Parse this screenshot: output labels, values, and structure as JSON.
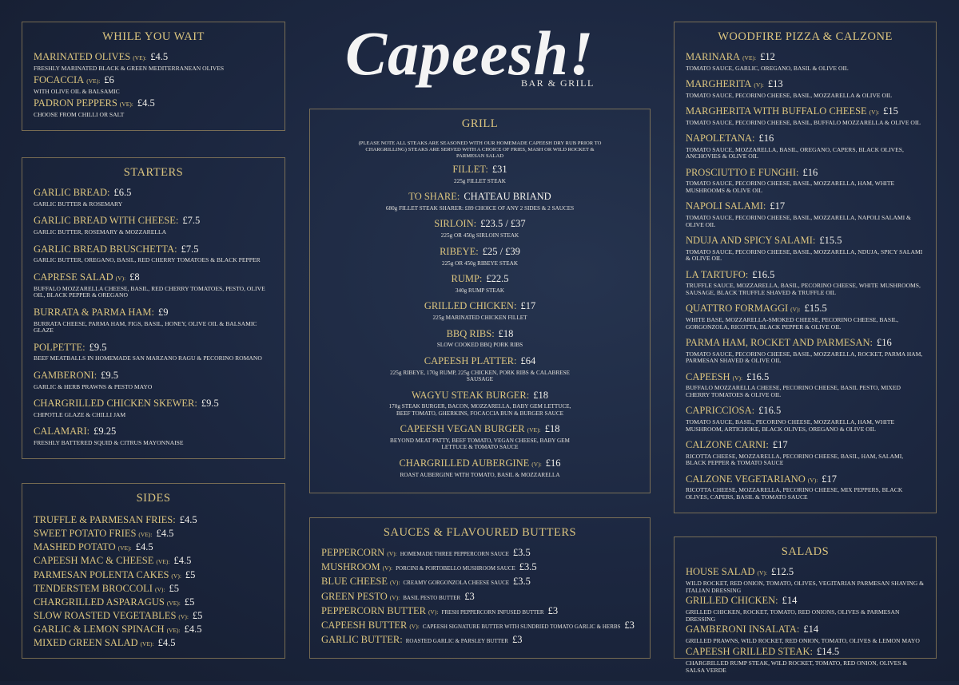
{
  "logo": {
    "name": "Capeesh!",
    "tagline": "BAR & GRILL"
  },
  "sections": [
    {
      "title": "WHILE YOU WAIT",
      "items": [
        {
          "name": "MARINATED OLIVES",
          "tag": "(VE):",
          "price": "£4.5",
          "desc": "FRESHLY MARINATED BLACK & GREEN MEDITERRANEAN OLIVES"
        },
        {
          "name": "FOCACCIA",
          "tag": "(VE):",
          "price": "£6",
          "desc": "WITH OLIVE OIL & BALSAMIC"
        },
        {
          "name": "PADRON PEPPERS",
          "tag": "(VE):",
          "price": "£4.5",
          "desc": "CHOOSE FROM CHILLI OR SALT"
        }
      ]
    },
    {
      "title": "STARTERS",
      "items": [
        {
          "name": "GARLIC BREAD:",
          "price": "£6.5",
          "desc": "GARLIC BUTTER & ROSEMARY"
        },
        {
          "name": "GARLIC BREAD WITH CHEESE:",
          "price": "£7.5",
          "desc": "GARLIC BUTTER, ROSEMARY & MOZZARELLA"
        },
        {
          "name": "GARLIC BREAD BRUSCHETTA:",
          "price": "£7.5",
          "desc": "GARLIC BUTTER, OREGANO, BASIL, RED CHERRY TOMATOES & BLACK PEPPER"
        },
        {
          "name": "CAPRESE SALAD",
          "tag": "(V):",
          "price": "£8",
          "desc": "BUFFALO MOZZARELLA CHEESE, BASIL, RED CHERRY TOMATOES, PESTO, OLIVE OIL, BLACK PEPPER & OREGANO"
        },
        {
          "name": "BURRATA & PARMA HAM:",
          "price": "£9",
          "desc": "BURRATA CHEESE, PARMA HAM, FIGS, BASIL, HONEY, OLIVE OIL & BALSAMIC GLAZE"
        },
        {
          "name": "POLPETTE:",
          "price": "£9.5",
          "desc": "BEEF MEATBALLS IN HOMEMADE SAN MARZANO RAGU & PECORINO ROMANO"
        },
        {
          "name": "GAMBERONI:",
          "price": "£9.5",
          "desc": "GARLIC & HERB PRAWNS & PESTO MAYO"
        },
        {
          "name": "CHARGRILLED CHICKEN SKEWER:",
          "price": "£9.5",
          "desc": "CHIPOTLE GLAZE & CHILLI JAM"
        },
        {
          "name": "CALAMARI:",
          "price": "£9.25",
          "desc": "FRESHLY BATTERED SQUID & CITRUS MAYONNAISE"
        }
      ]
    },
    {
      "title": "SIDES",
      "items": [
        {
          "name": "TRUFFLE & PARMESAN FRIES:",
          "price": "£4.5"
        },
        {
          "name": "SWEET POTATO FRIES",
          "tag": "(VE):",
          "price": "£4.5"
        },
        {
          "name": "MASHED POTATO",
          "tag": "(VE):",
          "price": "£4.5"
        },
        {
          "name": "CAPEESH MAC & CHEESE",
          "tag": "(VE):",
          "price": "£4.5"
        },
        {
          "name": "PARMESAN POLENTA CAKES",
          "tag": "(V):",
          "price": "£5"
        },
        {
          "name": "TENDERSTEM BROCCOLI",
          "tag": "(V):",
          "price": "£5"
        },
        {
          "name": "CHARGRILLED ASPARAGUS",
          "tag": "(VE):",
          "price": "£5"
        },
        {
          "name": "SLOW ROASTED VEGETABLES",
          "tag": "(V):",
          "price": "£5"
        },
        {
          "name": "GARLIC & LEMON SPINACH",
          "tag": "(VE):",
          "price": "£4.5"
        },
        {
          "name": "MIXED GREEN SALAD",
          "tag": "(VE):",
          "price": "£4.5"
        }
      ]
    },
    {
      "title": "GRILL",
      "note": "(PLEASE NOTE ALL STEAKS ARE SEASONED WITH OUR HOMEMADE CAPEESH DRY RUB PRIOR TO CHARGRILLING) STEAKS ARE SERVED WITH A CHOICE OF FRIES, MASH OR WILD ROCKET & PARMESAN SALAD",
      "items": [
        {
          "name": "FILLET:",
          "price": "£31",
          "desc": "225g FILLET STEAK"
        },
        {
          "name": "TO SHARE:",
          "price": "CHATEAU BRIAND",
          "desc": "680g FILLET STEAK SHARER: £89 CHOICE OF ANY 2 SIDES & 2 SAUCES"
        },
        {
          "name": "SIRLOIN:",
          "price": "£23.5 / £37",
          "desc": "225g OR 450g SIRLOIN STEAK"
        },
        {
          "name": "RIBEYE:",
          "price": "£25 / £39",
          "desc": "225g OR 450g RIBEYE STEAK"
        },
        {
          "name": "RUMP:",
          "price": "£22.5",
          "desc": "340g RUMP STEAK"
        },
        {
          "name": "GRILLED CHICKEN:",
          "price": "£17",
          "desc": "225g MARINATED CHICKEN FILLET"
        },
        {
          "name": "BBQ RIBS:",
          "price": "£18",
          "desc": "SLOW COOKED BBQ PORK RIBS"
        },
        {
          "name": "CAPEESH PLATTER:",
          "price": "£64",
          "desc": "225g RIBEYE, 170g RUMP, 225g CHICKEN, PORK RIBS & CALABRESE SAUSAGE"
        },
        {
          "name": "WAGYU STEAK BURGER:",
          "price": "£18",
          "desc": "170g STEAK BURGER, BACON, MOZZARELLA, BABY GEM LETTUCE, BEEF TOMATO, GHERKINS, FOCACCIA BUN & BURGER SAUCE"
        },
        {
          "name": "CAPEESH VEGAN BURGER",
          "tag": "(VE):",
          "price": "£18",
          "desc": "BEYOND MEAT PATTY, BEEF TOMATO, VEGAN CHEESE, BABY GEM LETTUCE & TOMATO SAUCE"
        },
        {
          "name": "CHARGRILLED AUBERGINE",
          "tag": "(V):",
          "price": "£16",
          "desc": "ROAST AUBERGINE WITH TOMATO, BASIL & MOZZARELLA"
        }
      ]
    },
    {
      "title": "SAUCES & FLAVOURED BUTTERS",
      "items": [
        {
          "name": "PEPPERCORN",
          "tag": "(V):",
          "desc": "HOMEMADE THREE PEPPERCORN SAUCE",
          "price": "£3.5"
        },
        {
          "name": "MUSHROOM",
          "tag": "(V):",
          "desc": "PORCINI & PORTOBELLO MUSHROOM SAUCE",
          "price": "£3.5"
        },
        {
          "name": "BLUE CHEESE",
          "tag": "(V):",
          "desc": "CREAMY GORGONZOLA CHEESE SAUCE",
          "price": "£3.5"
        },
        {
          "name": "GREEN PESTO",
          "tag": "(V):",
          "desc": "BASIL PESTO BUTTER",
          "price": "£3"
        },
        {
          "name": "PEPPERCORN BUTTER",
          "tag": "(V):",
          "desc": "FRESH PEPPERCORN INFUSED BUTTER",
          "price": "£3"
        },
        {
          "name": "CAPEESH BUTTER",
          "tag": "(V):",
          "desc": "CAPEESH SIGNATURE BUTTER WITH SUNDRIED TOMATO GARLIC & HERBS",
          "price": "£3"
        },
        {
          "name": "GARLIC BUTTER:",
          "desc": "ROASTED GARLIC & PARSLEY BUTTER",
          "price": "£3"
        }
      ]
    },
    {
      "title": "WOODFIRE PIZZA & CALZONE",
      "items": [
        {
          "name": "MARINARA",
          "tag": "(VE):",
          "price": "£12",
          "desc": "TOMATO SAUCE, GARLIC, OREGANO, BASIL & OLIVE OIL"
        },
        {
          "name": "MARGHERITA",
          "tag": "(V):",
          "price": "£13",
          "desc": "TOMATO SAUCE, PECORINO CHEESE, BASIL, MOZZARELLA & OLIVE OIL"
        },
        {
          "name": "MARGHERITA WITH BUFFALO CHEESE",
          "tag": "(V):",
          "price": "£15",
          "desc": "TOMATO SAUCE, PECORINO CHEESE, BASIL, BUFFALO MOZZARELLA & OLIVE OIL"
        },
        {
          "name": "NAPOLETANA:",
          "price": "£16",
          "desc": "TOMATO SAUCE, MOZZARELLA, BASIL, OREGANO, CAPERS, BLACK OLIVES, ANCHOVIES & OLIVE OIL"
        },
        {
          "name": "PROSCIUTTO E FUNGHI:",
          "price": "£16",
          "desc": "TOMATO SAUCE, PECORINO CHEESE, BASIL, MOZZARELLA, HAM, WHITE MUSHROOMS & OLIVE OIL"
        },
        {
          "name": "NAPOLI SALAMI:",
          "price": "£17",
          "desc": "TOMATO SAUCE, PECORINO CHEESE, BASIL, MOZZARELLA, NAPOLI SALAMI & OLIVE OIL"
        },
        {
          "name": "NDUJA AND SPICY SALAMI:",
          "price": "£15.5",
          "desc": "TOMATO SAUCE, PECORINO CHEESE, BASIL, MOZZARELLA, NDUJA, SPICY SALAMI & OLIVE OIL"
        },
        {
          "name": "LA TARTUFO:",
          "price": "£16.5",
          "desc": "TRUFFLE SAUCE, MOZZARELLA, BASIL, PECORINO CHEESE, WHITE MUSHROOMS, SAUSAGE, BLACK TRUFFLE SHAVED & TRUFFLE OIL"
        },
        {
          "name": "QUATTRO FORMAGGI",
          "tag": "(V):",
          "price": "£15.5",
          "desc": "WHITE BASE, MOZZARELLA-SMOKED CHEESE, PECORINO CHEESE, BASIL, GORGONZOLA, RICOTTA, BLACK PEPPER & OLIVE OIL"
        },
        {
          "name": "PARMA HAM, ROCKET AND PARMESAN:",
          "price": "£16",
          "desc": "TOMATO SAUCE, PECORINO CHEESE, BASIL, MOZZARELLA, ROCKET, PARMA HAM, PARMESAN SHAVED & OLIVE OIL"
        },
        {
          "name": "CAPEESH",
          "tag": "(V):",
          "price": "£16.5",
          "desc": "BUFFALO MOZZARELLA CHEESE, PECORINO CHEESE, BASIL PESTO, MIXED CHERRY TOMATOES & OLIVE OIL"
        },
        {
          "name": "CAPRICCIOSA:",
          "price": "£16.5",
          "desc": "TOMATO SAUCE, BASIL, PECORINO CHEESE, MOZZARELLA, HAM, WHITE MUSHROOM, ARTICHOKE, BLACK OLIVES, OREGANO & OLIVE OIL"
        },
        {
          "name": "CALZONE CARNI:",
          "price": "£17",
          "desc": "RICOTTA CHEESE, MOZZARELLA, PECORINO CHEESE, BASIL, HAM, SALAMI, BLACK PEPPER & TOMATO SAUCE"
        },
        {
          "name": "CALZONE VEGETARIANO",
          "tag": "(V):",
          "price": "£17",
          "desc": "RICOTTA CHEESE, MOZZARELLA, PECORINO CHEESE, MIX PEPPERS, BLACK OLIVES, CAPERS, BASIL & TOMATO SAUCE"
        }
      ]
    },
    {
      "title": "SALADS",
      "items": [
        {
          "name": "HOUSE SALAD",
          "tag": "(V):",
          "price": "£12.5",
          "desc": "WILD ROCKET, RED ONION, TOMATO, OLIVES, VEGITARIAN PARMESAN SHAVING & ITALIAN DRESSING"
        },
        {
          "name": "GRILLED CHICKEN:",
          "price": "£14",
          "desc": "GRILLED CHICKEN, ROCKET, TOMATO, RED ONIONS, OLIVES & PARMESAN DRESSING"
        },
        {
          "name": "GAMBERONI INSALATA:",
          "price": "£14",
          "desc": "GRILLED PRAWNS, WILD ROCKET, RED ONION, TOMATO, OLIVES & LEMON MAYO"
        },
        {
          "name": "CAPEESH GRILLED STEAK:",
          "price": "£14.5",
          "desc": "CHARGRILLED RUMP STEAK, WILD ROCKET, TOMATO, RED ONION, OLIVES & SALSA VERDE"
        }
      ]
    }
  ]
}
